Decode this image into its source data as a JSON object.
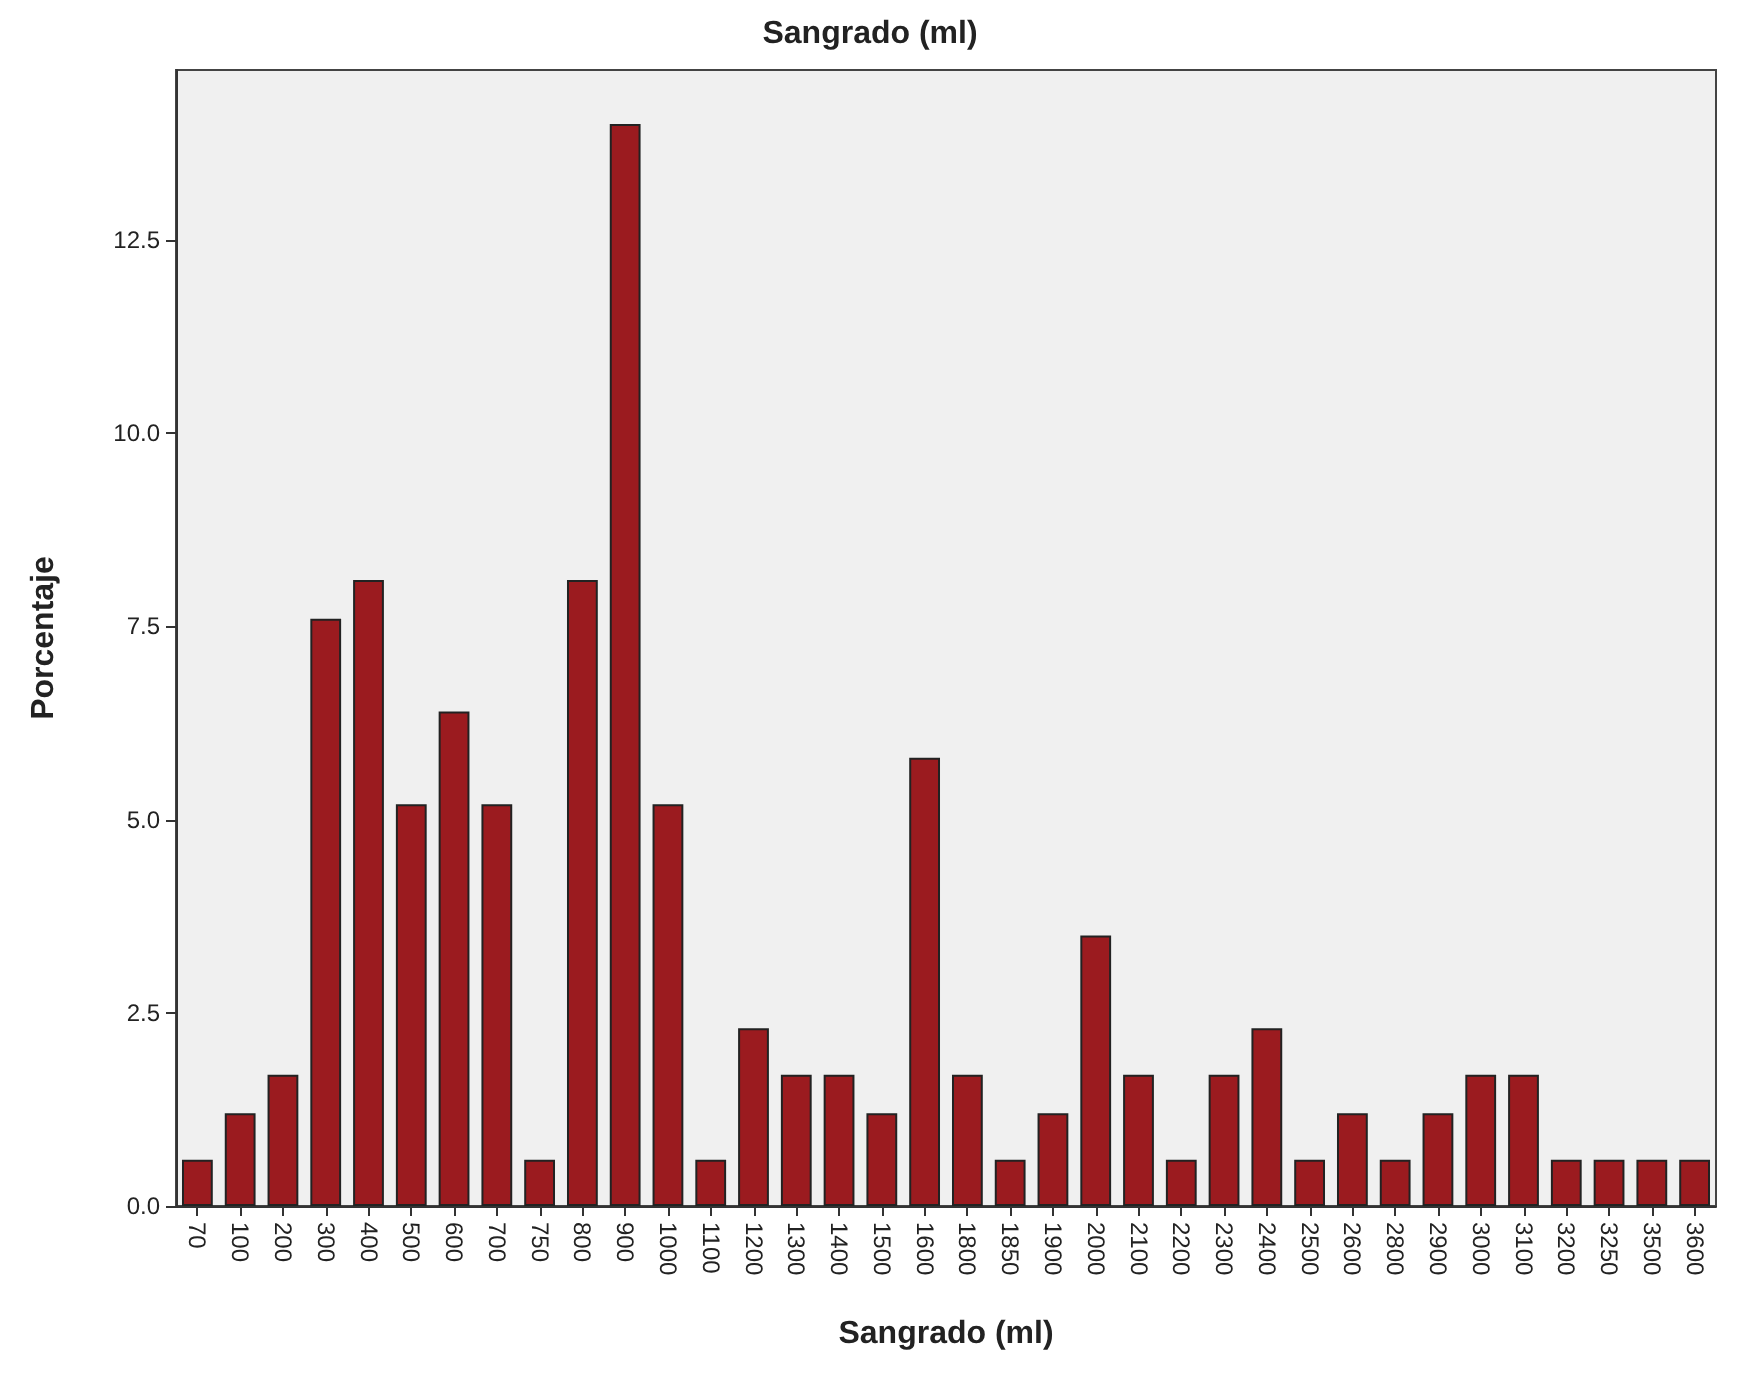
{
  "chart_data": {
    "type": "bar",
    "title": "Sangrado (ml)",
    "xlabel": "Sangrado (ml)",
    "ylabel": "Porcentaje",
    "categories": [
      "70",
      "100",
      "200",
      "300",
      "400",
      "500",
      "600",
      "700",
      "750",
      "800",
      "900",
      "1000",
      "1100",
      "1200",
      "1300",
      "1400",
      "1500",
      "1600",
      "1800",
      "1850",
      "1900",
      "2000",
      "2100",
      "2200",
      "2300",
      "2400",
      "2500",
      "2600",
      "2800",
      "2900",
      "3000",
      "3100",
      "3200",
      "3250",
      "3500",
      "3600"
    ],
    "values": [
      0.6,
      1.2,
      1.7,
      7.6,
      8.1,
      5.2,
      6.4,
      5.2,
      0.6,
      8.1,
      14.0,
      5.2,
      0.6,
      2.3,
      1.7,
      1.7,
      1.2,
      5.8,
      1.7,
      0.6,
      1.2,
      3.5,
      1.7,
      0.6,
      1.7,
      2.3,
      0.6,
      1.2,
      0.6,
      1.2,
      1.7,
      1.7,
      0.6,
      0.6,
      0.6,
      0.6
    ],
    "color": "#9b1b1f",
    "ylim": [
      0,
      14.7
    ],
    "yticks": [
      {
        "value": 0,
        "label": "0.0"
      },
      {
        "value": 2.5,
        "label": "2.5"
      },
      {
        "value": 5,
        "label": "5.0"
      },
      {
        "value": 7.5,
        "label": "7.5"
      },
      {
        "value": 10,
        "label": "10.0"
      },
      {
        "value": 12.5,
        "label": "12.5"
      }
    ],
    "grid": false
  }
}
